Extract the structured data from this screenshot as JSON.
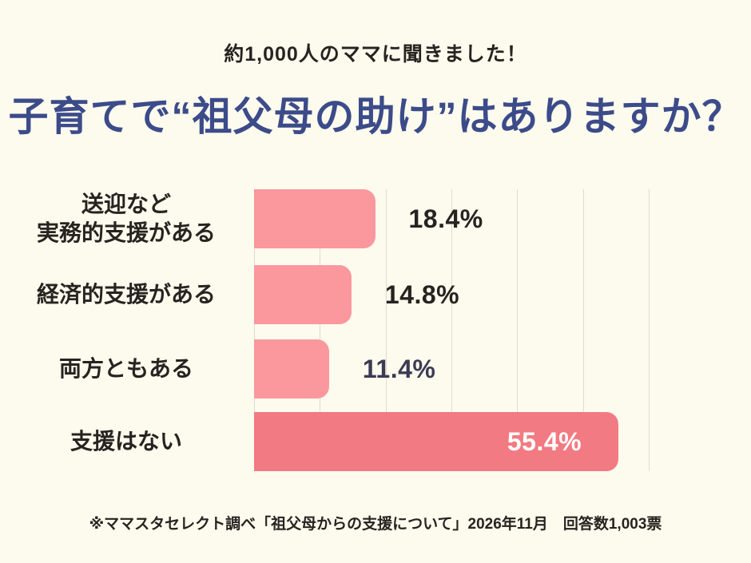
{
  "page": {
    "subtitle": "約1,000人のママに聞きました！",
    "title": "子育てで“祖父母の助け”はありますか？",
    "footer": "※ママスタセレクト調べ「祖父母からの支援について」2026年11月　回答数1,003票"
  },
  "colors": {
    "background": "#FDFBEE",
    "title_blue": "#3C4B89",
    "text_dark": "#262320",
    "bar_light": "#FB989D",
    "bar_dark": "#F27A82",
    "gridline": "#DFDCCE",
    "value_navy": "#3B3B55",
    "value_white": "#FFFFFF"
  },
  "chart_data": {
    "type": "bar",
    "orientation": "horizontal",
    "title": "子育てで“祖父母の助け”はありますか？",
    "subtitle": "約1,000人のママに聞きました！",
    "source_note": "※ママスタセレクト調べ「祖父母からの支援について」2026年11月　回答数1,003票",
    "categories": [
      "送迎など 実務的支援がある",
      "経済的支援がある",
      "両方ともある",
      "支援はない"
    ],
    "values": [
      18.4,
      14.8,
      11.4,
      55.4
    ],
    "xlim": [
      0,
      60
    ],
    "gridline_step": 10,
    "grid": true,
    "legend": false,
    "rows": [
      {
        "label_lines": [
          "送迎など",
          "実務的支援がある"
        ],
        "value": 18.4,
        "display": "18.4%",
        "bar_color": "#FB989D",
        "value_color": "#262320",
        "value_inside": false
      },
      {
        "label_lines": [
          "経済的支援がある"
        ],
        "value": 14.8,
        "display": "14.8%",
        "bar_color": "#FB989D",
        "value_color": "#262320",
        "value_inside": false
      },
      {
        "label_lines": [
          "両方ともある"
        ],
        "value": 11.4,
        "display": "11.4%",
        "bar_color": "#FB989D",
        "value_color": "#3B3B55",
        "value_inside": false
      },
      {
        "label_lines": [
          "支援はない"
        ],
        "value": 55.4,
        "display": "55.4%",
        "bar_color": "#F27A82",
        "value_color": "#FFFFFF",
        "value_inside": true
      }
    ]
  }
}
